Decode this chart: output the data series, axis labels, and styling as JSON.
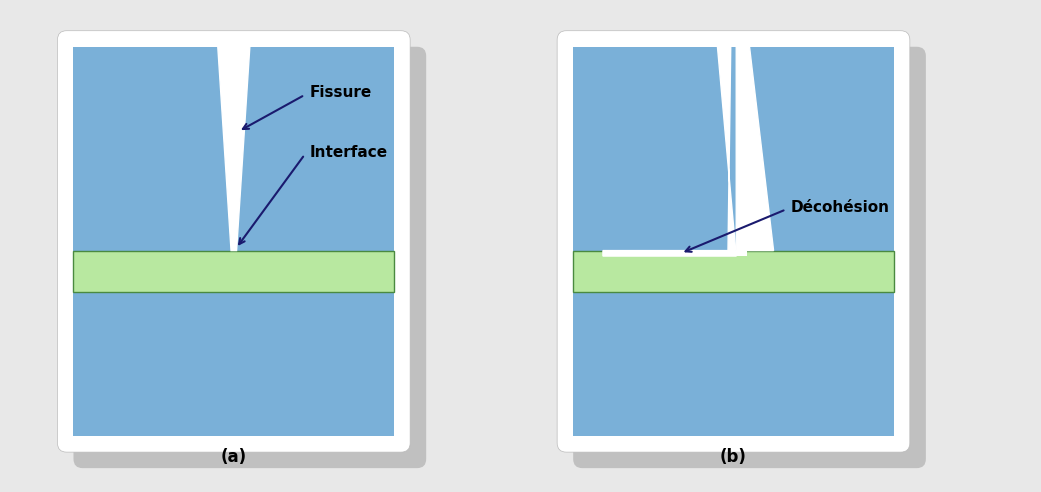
{
  "bg_color": "#e8e8e8",
  "blue_color": "#7ab0d8",
  "green_color": "#b8e8a0",
  "green_edge": "#4a8a40",
  "white_color": "#ffffff",
  "shadow_color": "#999999",
  "label_a": "(a)",
  "label_b": "(b)",
  "label_fissure": "Fissure",
  "label_interface": "Interface",
  "label_decohesion": "Décohésion",
  "text_color": "#000000",
  "arrow_color": "#1a1a6e"
}
